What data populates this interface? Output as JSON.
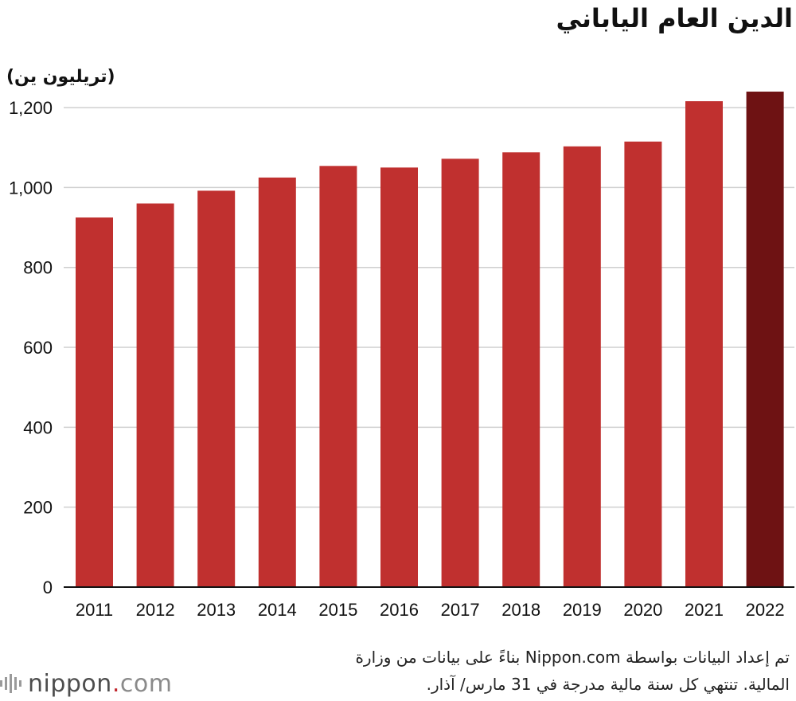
{
  "chart_data": {
    "type": "bar",
    "title": "الدين العام الياباني",
    "ylabel": "(تريليون ين)",
    "xlabel": "",
    "categories": [
      "2011",
      "2012",
      "2013",
      "2014",
      "2015",
      "2016",
      "2017",
      "2018",
      "2019",
      "2020",
      "2021",
      "2022"
    ],
    "values": [
      925,
      960,
      992,
      1025,
      1054,
      1050,
      1072,
      1088,
      1103,
      1115,
      1216,
      1240
    ],
    "ylim": [
      0,
      1240
    ],
    "yticks": [
      0,
      200,
      400,
      600,
      800,
      1000,
      1200
    ],
    "ytick_labels": [
      "0",
      "200",
      "400",
      "600",
      "800",
      "1,000",
      "1,200"
    ],
    "grid": true,
    "bar_color": "#c0302f",
    "highlight_color": "#6e1213",
    "highlight_index": 11
  },
  "source": {
    "line1": "تم إعداد البيانات بواسطة Nippon.com بناءً على بيانات من وزارة",
    "line2": "المالية. تنتهي كل سنة مالية مدرجة في 31 مارس/ آذار."
  },
  "logo": {
    "name": "nippon",
    "dot": ".",
    "tld": "com"
  }
}
